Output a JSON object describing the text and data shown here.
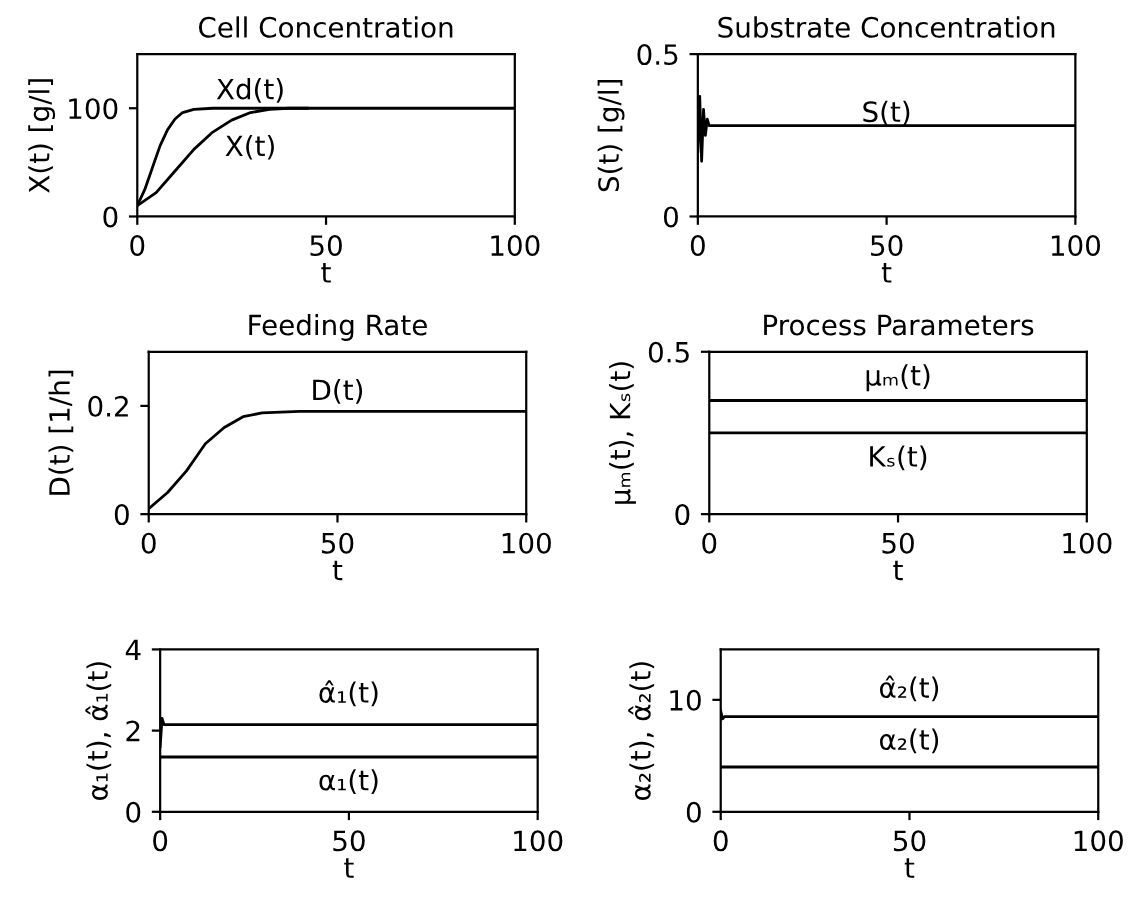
{
  "chart_data": [
    {
      "type": "line",
      "title": "Cell Concentration",
      "xlabel": "t",
      "ylabel": "X(t) [g/l]",
      "xlim": [
        0,
        100
      ],
      "xticks": [
        0,
        50,
        100
      ],
      "ylim": [
        0,
        150
      ],
      "yticks": [
        0,
        100
      ],
      "grid": false,
      "line_style": "solid",
      "series": [
        {
          "name": "Xd(t)",
          "color": "#000000",
          "x": [
            0,
            2,
            4,
            6,
            8,
            10,
            12,
            15,
            20,
            100
          ],
          "values": [
            10,
            25,
            45,
            65,
            80,
            90,
            96,
            99,
            100,
            100
          ]
        },
        {
          "name": "X(t)",
          "color": "#000000",
          "x": [
            0,
            5,
            10,
            15,
            20,
            25,
            30,
            35,
            40,
            45
          ],
          "values": [
            10,
            22,
            42,
            62,
            78,
            89,
            96,
            99,
            100,
            100
          ]
        }
      ]
    },
    {
      "type": "line",
      "title": "Substrate Concentration",
      "xlabel": "t",
      "ylabel": "S(t) [g/l]",
      "xlim": [
        0,
        100
      ],
      "xticks": [
        0,
        50,
        100
      ],
      "ylim": [
        0,
        0.5
      ],
      "yticks": [
        0,
        0.5
      ],
      "grid": false,
      "line_style": "solid",
      "series": [
        {
          "name": "S(t)",
          "color": "#000000",
          "x": [
            0,
            0.5,
            1,
            1.5,
            2,
            2.5,
            3,
            100
          ],
          "values": [
            0.2,
            0.37,
            0.17,
            0.33,
            0.25,
            0.3,
            0.28,
            0.28
          ]
        }
      ]
    },
    {
      "type": "line",
      "title": "Feeding Rate",
      "xlabel": "t",
      "ylabel": "D(t) [1/h]",
      "xlim": [
        0,
        100
      ],
      "xticks": [
        0,
        50,
        100
      ],
      "ylim": [
        0,
        0.3
      ],
      "yticks": [
        0,
        0.2
      ],
      "grid": false,
      "line_style": "solid",
      "series": [
        {
          "name": "D(t)",
          "color": "#000000",
          "x": [
            0,
            5,
            10,
            15,
            20,
            25,
            30,
            40,
            100
          ],
          "values": [
            0.01,
            0.04,
            0.08,
            0.13,
            0.16,
            0.18,
            0.187,
            0.19,
            0.19
          ]
        }
      ]
    },
    {
      "type": "line",
      "title": "Process Parameters",
      "xlabel": "t",
      "ylabel": "μₘ(t), Kₛ(t)",
      "xlim": [
        0,
        100
      ],
      "xticks": [
        0,
        50,
        100
      ],
      "ylim": [
        0,
        0.5
      ],
      "yticks": [
        0,
        0.5
      ],
      "grid": false,
      "line_style": "solid",
      "series": [
        {
          "name": "μₘ(t)",
          "color": "#000000",
          "x": [
            0,
            100
          ],
          "values": [
            0.35,
            0.35
          ]
        },
        {
          "name": "Kₛ(t)",
          "color": "#000000",
          "x": [
            0,
            100
          ],
          "values": [
            0.25,
            0.25
          ]
        }
      ]
    },
    {
      "type": "line",
      "xlabel": "t",
      "ylabel": "α₁(t), α̂₁(t)",
      "xlim": [
        0,
        100
      ],
      "xticks": [
        0,
        50,
        100
      ],
      "ylim": [
        0,
        4
      ],
      "yticks": [
        0,
        2,
        4
      ],
      "grid": false,
      "line_style": "solid",
      "series": [
        {
          "name": "α̂₁(t)",
          "color": "#000000",
          "x": [
            0,
            0.5,
            1,
            100
          ],
          "values": [
            1.6,
            2.3,
            2.15,
            2.15
          ]
        },
        {
          "name": "α₁(t)",
          "color": "#000000",
          "x": [
            0,
            100
          ],
          "values": [
            1.35,
            1.35
          ]
        }
      ]
    },
    {
      "type": "line",
      "xlabel": "t",
      "ylabel": "α₂(t), α̂₂(t)",
      "xlim": [
        0,
        100
      ],
      "xticks": [
        0,
        50,
        100
      ],
      "ylim": [
        0,
        14.5
      ],
      "yticks": [
        0,
        10
      ],
      "grid": false,
      "line_style": "solid",
      "series": [
        {
          "name": "α̂₂(t)",
          "color": "#000000",
          "x": [
            0,
            0.5,
            1,
            100
          ],
          "values": [
            9,
            8.3,
            8.5,
            8.5
          ]
        },
        {
          "name": "α₂(t)",
          "color": "#000000",
          "x": [
            0,
            100
          ],
          "values": [
            4,
            4
          ]
        }
      ]
    }
  ]
}
